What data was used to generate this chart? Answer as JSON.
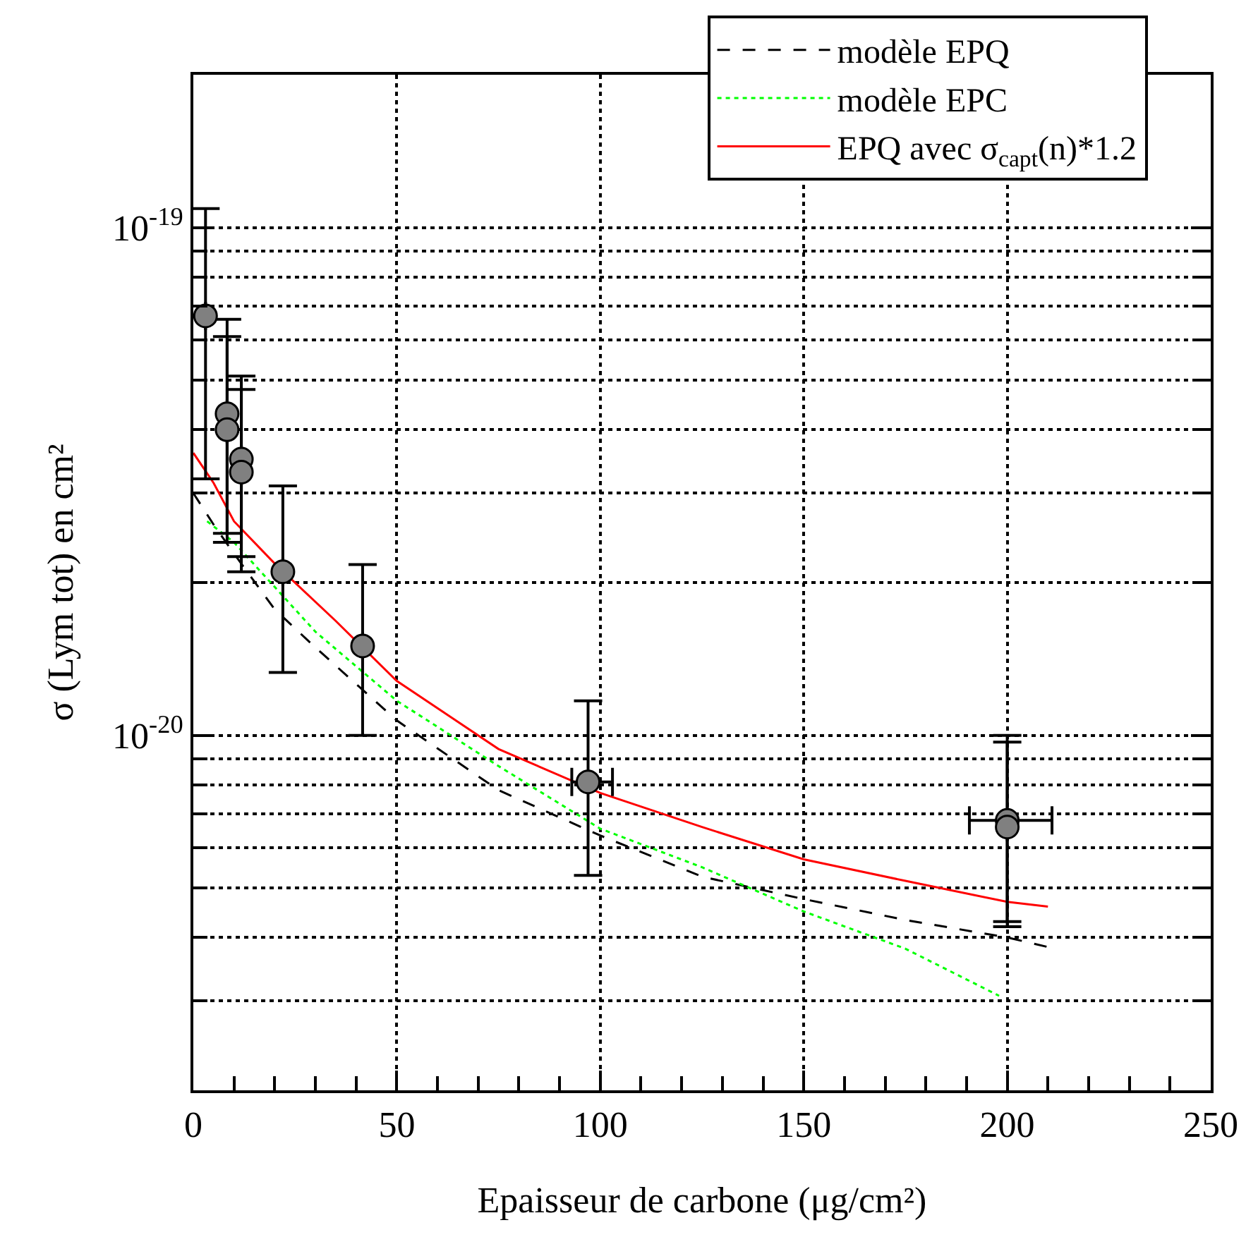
{
  "chart_data": {
    "type": "line",
    "xlabel": "Epaisseur de carbone (μg/cm²)",
    "ylabel": "σ (Lym tot) en cm²",
    "log": "y",
    "xlim": [
      0,
      250
    ],
    "xticks": [
      0,
      50,
      100,
      150,
      200,
      250,
      {
        "value": 10,
        "label": null
      },
      {
        "value": 20,
        "label": null
      },
      {
        "value": 30,
        "label": null
      },
      {
        "value": 40,
        "label": null
      },
      {
        "value": 60,
        "label": null
      },
      {
        "value": 70,
        "label": null
      },
      {
        "value": 80,
        "label": null
      },
      {
        "value": 90,
        "label": null
      },
      {
        "value": 110,
        "label": null
      },
      {
        "value": 120,
        "label": null
      },
      {
        "value": 130,
        "label": null
      },
      {
        "value": 140,
        "label": null
      },
      {
        "value": 160,
        "label": null
      },
      {
        "value": 170,
        "label": null
      },
      {
        "value": 180,
        "label": null
      },
      {
        "value": 190,
        "label": null
      },
      {
        "value": 210,
        "label": null
      },
      {
        "value": 220,
        "label": null
      },
      {
        "value": 230,
        "label": null
      },
      {
        "value": 240,
        "label": null
      }
    ],
    "ylim": [
      2e-21,
      2e-19
    ],
    "yticks": [
      {
        "value": 1e-19,
        "label": "10$^{-19}$"
      },
      {
        "value": 1e-20,
        "label": "10$^{-20}$"
      },
      {
        "value": 3e-21,
        "label": null
      },
      {
        "value": 4e-21,
        "label": null
      },
      {
        "value": 5e-21,
        "label": null
      },
      {
        "value": 6e-21,
        "label": null
      },
      {
        "value": 7e-21,
        "label": null
      },
      {
        "value": 8e-21,
        "label": null
      },
      {
        "value": 9e-21,
        "label": null
      },
      {
        "value": 2e-20,
        "label": null
      },
      {
        "value": 3e-20,
        "label": null
      },
      {
        "value": 4e-20,
        "label": null
      },
      {
        "value": 5e-20,
        "label": null
      },
      {
        "value": 6e-20,
        "label": null
      },
      {
        "value": 7e-20,
        "label": null
      },
      {
        "value": 8e-20,
        "label": null
      },
      {
        "value": 9e-20,
        "label": null
      }
    ],
    "grid": true,
    "legend": "top right",
    "series": [
      {
        "name": "modèle EPQ",
        "color": "#000000",
        "line_style": "dashed",
        "marker": "none",
        "x": [
          0,
          5,
          10,
          20,
          30,
          50,
          75,
          100,
          125,
          150,
          175,
          200,
          210
        ],
        "values": [
          3e-20,
          2.6e-20,
          2.28e-20,
          1.77e-20,
          1.49e-20,
          1.07e-20,
          7.8e-21,
          6.35e-21,
          5.27e-21,
          4.76e-21,
          4.33e-21,
          4e-21,
          3.83e-21
        ]
      },
      {
        "name": "modèle EPC",
        "color": "#00ff00",
        "line_style": "dotted",
        "marker": "none",
        "x": [
          3.4,
          10,
          20,
          30,
          50,
          75,
          100,
          125,
          150,
          175,
          198
        ],
        "values": [
          2.64e-20,
          2.4e-20,
          1.96e-20,
          1.6e-20,
          1.17e-20,
          8.7e-21,
          6.55e-21,
          5.5e-21,
          4.5e-21,
          3.8e-21,
          3.07e-21
        ]
      },
      {
        "name": "EPQ avec σ$_{capt}$(n)*1.2",
        "color": "#ff0000",
        "line_style": "solid",
        "marker": "none",
        "x": [
          0,
          5,
          10,
          20,
          35,
          50,
          75,
          100,
          125,
          150,
          175,
          200,
          210
        ],
        "values": [
          3.6e-20,
          3.14e-20,
          2.64e-20,
          2.18e-20,
          1.68e-20,
          1.28e-20,
          9.4e-21,
          7.7e-21,
          6.6e-21,
          5.7e-21,
          5.17e-21,
          4.7e-21,
          4.6e-21
        ]
      },
      {
        "type": "scatter",
        "color": "#808080",
        "marker": "circle",
        "x": [
          3,
          8.3,
          8.3,
          11.8,
          11.8,
          22,
          41.6,
          97,
          200,
          200
        ],
        "values": [
          6.7e-20,
          4.3e-20,
          4e-20,
          3.5e-20,
          3.3e-20,
          2.1e-20,
          1.5e-20,
          8.1e-21,
          6.8e-21,
          6.6e-21
        ],
        "errors": [
          [
            3.2e-20,
            1.09e-19
          ],
          [
            2.5e-20,
            6.6e-20
          ],
          [
            2.4e-20,
            6.1e-20
          ],
          [
            2.25e-20,
            5.1e-20
          ],
          [
            2.1e-20,
            4.8e-20
          ],
          [
            1.33e-20,
            3.1e-20
          ],
          [
            1e-20,
            2.17e-20
          ],
          [
            5.3e-21,
            1.17e-20
          ],
          [
            4.3e-21,
            1e-20
          ],
          [
            4.2e-21,
            9.7e-21
          ]
        ],
        "xerrors": [
          null,
          null,
          null,
          null,
          null,
          null,
          null,
          [
            93,
            103
          ],
          [
            190.7,
            211
          ],
          null
        ]
      }
    ]
  }
}
